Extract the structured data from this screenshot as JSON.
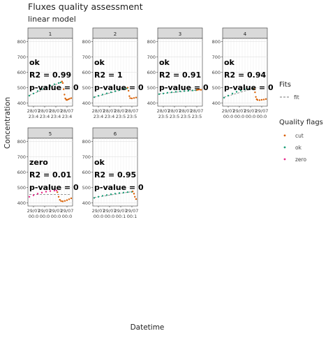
{
  "chart_data": {
    "type": "scatter",
    "title": "Fluxes quality assessment",
    "subtitle": "linear model",
    "xlabel": "Datetime",
    "ylabel": "Concentration",
    "ylim": [
      380,
      820
    ],
    "y_ticks": [
      400,
      500,
      600,
      700,
      800
    ],
    "grid": true,
    "legend_position": "right",
    "legends": [
      {
        "title": "Fits",
        "entries": [
          {
            "label": "fit",
            "color": "#888888",
            "style": "dashed-line"
          }
        ]
      },
      {
        "title": "Quality flags",
        "entries": [
          {
            "label": "cut",
            "color": "#d95f02"
          },
          {
            "label": "ok",
            "color": "#1b9e77"
          },
          {
            "label": "zero",
            "color": "#e7298a"
          }
        ]
      }
    ],
    "panels": [
      {
        "strip": "1",
        "annotation": [
          "ok",
          "R2 = 0.99",
          "p-value = 0"
        ],
        "x_ticks": [
          "28/07\n23:4",
          "28/07\n23:4",
          "28/07\n23:4",
          "28/07\n23:4"
        ],
        "series": [
          {
            "flag": "ok",
            "x": [
              0.0,
              0.1,
              0.2,
              0.3,
              0.4,
              0.5,
              0.6,
              0.7,
              0.75
            ],
            "y": [
              448,
              462,
              478,
              491,
              503,
              513,
              522,
              530,
              534
            ]
          },
          {
            "flag": "cut",
            "x": [
              0.78,
              0.8,
              0.82,
              0.84,
              0.86,
              0.88,
              0.9,
              0.93,
              0.96,
              1.0
            ],
            "y": [
              540,
              530,
              490,
              455,
              430,
              422,
              420,
              424,
              428,
              432
            ]
          }
        ],
        "fit": {
          "x": [
            0.0,
            0.76
          ],
          "y": [
            450,
            535
          ]
        }
      },
      {
        "strip": "2",
        "annotation": [
          "ok",
          "R2 = 1",
          "p-value = 0"
        ],
        "x_ticks": [
          "28/07\n23:4",
          "28/07\n23:4",
          "28/07\n23:5",
          "28/07\n23:5"
        ],
        "series": [
          {
            "flag": "ok",
            "x": [
              0.0,
              0.1,
              0.2,
              0.3,
              0.4,
              0.5,
              0.6,
              0.7,
              0.78
            ],
            "y": [
              438,
              447,
              455,
              463,
              470,
              477,
              484,
              490,
              495
            ]
          },
          {
            "flag": "cut",
            "x": [
              0.8,
              0.82,
              0.84,
              0.86,
              0.9,
              0.95,
              1.0
            ],
            "y": [
              500,
              480,
              445,
              432,
              430,
              433,
              436
            ]
          }
        ],
        "fit": {
          "x": [
            0.0,
            0.78
          ],
          "y": [
            438,
            495
          ]
        }
      },
      {
        "strip": "3",
        "annotation": [
          "ok",
          "R2 = 0.91",
          "p-value = 0"
        ],
        "x_ticks": [
          "28/07\n23:5",
          "28/07\n23:5",
          "28/07\n23:5",
          "28/07\n23:5"
        ],
        "series": [
          {
            "flag": "ok",
            "x": [
              0.0,
              0.1,
              0.2,
              0.3,
              0.4,
              0.5,
              0.6,
              0.7,
              0.8,
              0.88
            ],
            "y": [
              458,
              462,
              467,
              470,
              473,
              476,
              478,
              480,
              482,
              483
            ]
          },
          {
            "flag": "cut",
            "x": [
              0.9,
              0.93,
              0.96,
              1.0
            ],
            "y": [
              485,
              487,
              488,
              486
            ]
          }
        ],
        "fit": {
          "x": [
            0.0,
            0.9
          ],
          "y": [
            460,
            484
          ]
        }
      },
      {
        "strip": "4",
        "annotation": [
          "ok",
          "R2 = 0.94",
          "p-value = 0"
        ],
        "x_ticks": [
          "29/07\n00:0",
          "29/07\n00:0",
          "29/07\n00:0",
          "29/07\n00:0"
        ],
        "series": [
          {
            "flag": "ok",
            "x": [
              0.0,
              0.1,
              0.2,
              0.3,
              0.4,
              0.5,
              0.6,
              0.7
            ],
            "y": [
              435,
              448,
              462,
              473,
              482,
              489,
              493,
              495
            ]
          },
          {
            "flag": "cut",
            "x": [
              0.72,
              0.74,
              0.76,
              0.78,
              0.8,
              0.85,
              0.9,
              0.95,
              1.0
            ],
            "y": [
              490,
              470,
              440,
              425,
              420,
              419,
              421,
              423,
              426
            ]
          }
        ],
        "fit": {
          "x": [
            0.0,
            0.7
          ],
          "y": [
            438,
            495
          ]
        }
      },
      {
        "strip": "5",
        "annotation": [
          "zero",
          "R2 = 0.01",
          "p-value = 0"
        ],
        "x_ticks": [
          "29/07\n00:0",
          "29/07\n00:0",
          "29/07\n00:0",
          "29/07\n00:0"
        ],
        "series": [
          {
            "flag": "zero",
            "x": [
              0.0,
              0.1,
              0.2,
              0.3,
              0.4,
              0.5,
              0.6,
              0.65
            ],
            "y": [
              440,
              450,
              460,
              467,
              473,
              477,
              480,
              481
            ]
          },
          {
            "flag": "cut",
            "x": [
              0.67,
              0.7,
              0.73,
              0.76,
              0.8,
              0.85,
              0.9,
              0.95,
              1.0
            ],
            "y": [
              470,
              440,
              420,
              412,
              410,
              413,
              418,
              424,
              430
            ]
          }
        ],
        "fit": {
          "x": [
            0.0,
            1.0
          ],
          "y": [
            455,
            455
          ]
        }
      },
      {
        "strip": "6",
        "annotation": [
          "ok",
          "R2 = 0.95",
          "p-value = 0"
        ],
        "x_ticks": [
          "29/07\n00:0",
          "29/07\n00:0",
          "29/07\n00:1",
          "29/07\n00:1"
        ],
        "series": [
          {
            "flag": "ok",
            "x": [
              0.0,
              0.1,
              0.2,
              0.3,
              0.4,
              0.5,
              0.6,
              0.7,
              0.8,
              0.9
            ],
            "y": [
              433,
              440,
              446,
              451,
              456,
              460,
              464,
              467,
              470,
              472
            ]
          },
          {
            "flag": "cut",
            "x": [
              0.92,
              0.95,
              0.97,
              1.0
            ],
            "y": [
              475,
              460,
              440,
              425
            ]
          }
        ],
        "fit": {
          "x": [
            0.0,
            0.92
          ],
          "y": [
            435,
            474
          ]
        }
      }
    ]
  }
}
